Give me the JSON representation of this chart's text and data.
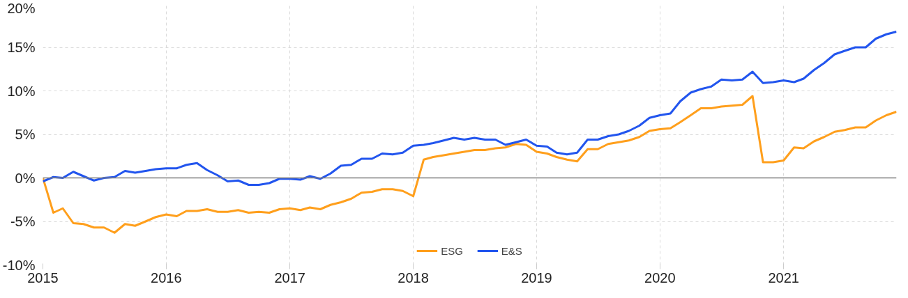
{
  "chart_data": {
    "type": "line",
    "x": [
      "2015-01",
      "2015-02",
      "2015-03",
      "2015-04",
      "2015-05",
      "2015-06",
      "2015-07",
      "2015-08",
      "2015-09",
      "2015-10",
      "2015-11",
      "2015-12",
      "2016-01",
      "2016-02",
      "2016-03",
      "2016-04",
      "2016-05",
      "2016-06",
      "2016-07",
      "2016-08",
      "2016-09",
      "2016-10",
      "2016-11",
      "2016-12",
      "2017-01",
      "2017-02",
      "2017-03",
      "2017-04",
      "2017-05",
      "2017-06",
      "2017-07",
      "2017-08",
      "2017-09",
      "2017-10",
      "2017-11",
      "2017-12",
      "2018-01",
      "2018-02",
      "2018-03",
      "2018-04",
      "2018-05",
      "2018-06",
      "2018-07",
      "2018-08",
      "2018-09",
      "2018-10",
      "2018-11",
      "2018-12",
      "2019-01",
      "2019-02",
      "2019-03",
      "2019-04",
      "2019-05",
      "2019-06",
      "2019-07",
      "2019-08",
      "2019-09",
      "2019-10",
      "2019-11",
      "2019-12",
      "2020-01",
      "2020-02",
      "2020-03",
      "2020-04",
      "2020-05",
      "2020-06",
      "2020-07",
      "2020-08",
      "2020-09",
      "2020-10",
      "2020-11",
      "2020-12",
      "2021-01",
      "2021-02",
      "2021-03",
      "2021-04",
      "2021-05",
      "2021-06",
      "2021-07",
      "2021-08",
      "2021-09",
      "2021-10",
      "2021-11",
      "2021-12"
    ],
    "series": [
      {
        "name": "ESG",
        "color": "#ff9f1c",
        "values": [
          0.0,
          -4.0,
          -3.5,
          -5.2,
          -5.3,
          -5.7,
          -5.7,
          -6.3,
          -5.3,
          -5.5,
          -5.0,
          -4.5,
          -4.2,
          -4.4,
          -3.8,
          -3.8,
          -3.6,
          -3.9,
          -3.9,
          -3.7,
          -4.0,
          -3.9,
          -4.0,
          -3.6,
          -3.5,
          -3.7,
          -3.4,
          -3.6,
          -3.1,
          -2.8,
          -2.4,
          -1.7,
          -1.6,
          -1.3,
          -1.3,
          -1.5,
          -2.1,
          2.1,
          2.4,
          2.6,
          2.8,
          3.0,
          3.2,
          3.2,
          3.4,
          3.5,
          3.9,
          3.8,
          3.0,
          2.8,
          2.4,
          2.1,
          1.9,
          3.3,
          3.3,
          3.9,
          4.1,
          4.3,
          4.7,
          5.4,
          5.6,
          5.7,
          6.4,
          7.2,
          8.0,
          8.0,
          8.2,
          8.3,
          8.4,
          9.4,
          1.8,
          1.8,
          2.0,
          3.5,
          3.4,
          4.2,
          4.7,
          5.3,
          5.5,
          5.8,
          5.8,
          6.6,
          7.2,
          7.6
        ]
      },
      {
        "name": "E&S",
        "color": "#2255ee",
        "values": [
          -0.4,
          0.1,
          0.0,
          0.7,
          0.2,
          -0.3,
          0.0,
          0.1,
          0.8,
          0.6,
          0.8,
          1.0,
          1.1,
          1.1,
          1.5,
          1.7,
          0.9,
          0.3,
          -0.4,
          -0.3,
          -0.8,
          -0.8,
          -0.6,
          -0.1,
          -0.1,
          -0.2,
          0.2,
          -0.1,
          0.5,
          1.4,
          1.5,
          2.2,
          2.2,
          2.8,
          2.7,
          2.9,
          3.7,
          3.8,
          4.0,
          4.3,
          4.6,
          4.4,
          4.6,
          4.4,
          4.4,
          3.8,
          4.1,
          4.4,
          3.7,
          3.6,
          2.9,
          2.7,
          2.9,
          4.4,
          4.4,
          4.8,
          5.0,
          5.4,
          6.0,
          6.9,
          7.2,
          7.4,
          8.8,
          9.8,
          10.2,
          10.5,
          11.3,
          11.2,
          11.3,
          12.2,
          10.9,
          11.0,
          11.2,
          11.0,
          11.4,
          12.4,
          13.2,
          14.2,
          14.6,
          15.0,
          15.0,
          16.0,
          16.5,
          16.8
        ]
      }
    ],
    "xlim": [
      "2015",
      "2021-12"
    ],
    "xticks": [
      "2015",
      "2016",
      "2017",
      "2018",
      "2019",
      "2020",
      "2021"
    ],
    "ylim": [
      -10,
      20
    ],
    "yticks": [
      {
        "value": -10,
        "label": "-10%"
      },
      {
        "value": -5,
        "label": "-5%"
      },
      {
        "value": 0,
        "label": "0%"
      },
      {
        "value": 5,
        "label": "5%"
      },
      {
        "value": 10,
        "label": "10%"
      },
      {
        "value": 15,
        "label": "15%"
      },
      {
        "value": 20,
        "label": "20%"
      }
    ],
    "ref_lines": [
      {
        "axis": "y",
        "value": 0,
        "label": null,
        "color": "#808080"
      }
    ],
    "grid": true,
    "legend": "bottom",
    "line_style": "solid",
    "marker": "none"
  }
}
